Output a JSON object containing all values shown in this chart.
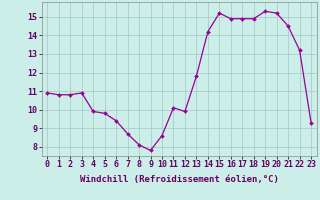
{
  "x": [
    0,
    1,
    2,
    3,
    4,
    5,
    6,
    7,
    8,
    9,
    10,
    11,
    12,
    13,
    14,
    15,
    16,
    17,
    18,
    19,
    20,
    21,
    22,
    23
  ],
  "y": [
    10.9,
    10.8,
    10.8,
    10.9,
    9.9,
    9.8,
    9.4,
    8.7,
    8.1,
    7.8,
    8.6,
    10.1,
    9.9,
    11.8,
    14.2,
    15.2,
    14.9,
    14.9,
    14.9,
    15.3,
    15.2,
    14.5,
    13.2,
    9.3
  ],
  "line_color": "#990099",
  "marker_color": "#990099",
  "bg_color": "#cceee8",
  "grid_color": "#aacccc",
  "xlabel": "Windchill (Refroidissement éolien,°C)",
  "ylabel_ticks": [
    8,
    9,
    10,
    11,
    12,
    13,
    14,
    15
  ],
  "xlim": [
    -0.5,
    23.5
  ],
  "ylim": [
    7.5,
    15.8
  ],
  "xtick_labels": [
    "0",
    "1",
    "2",
    "3",
    "4",
    "5",
    "6",
    "7",
    "8",
    "9",
    "10",
    "11",
    "12",
    "13",
    "14",
    "15",
    "16",
    "17",
    "18",
    "19",
    "20",
    "21",
    "22",
    "23"
  ],
  "label_fontsize": 6.5,
  "tick_fontsize": 6.0
}
